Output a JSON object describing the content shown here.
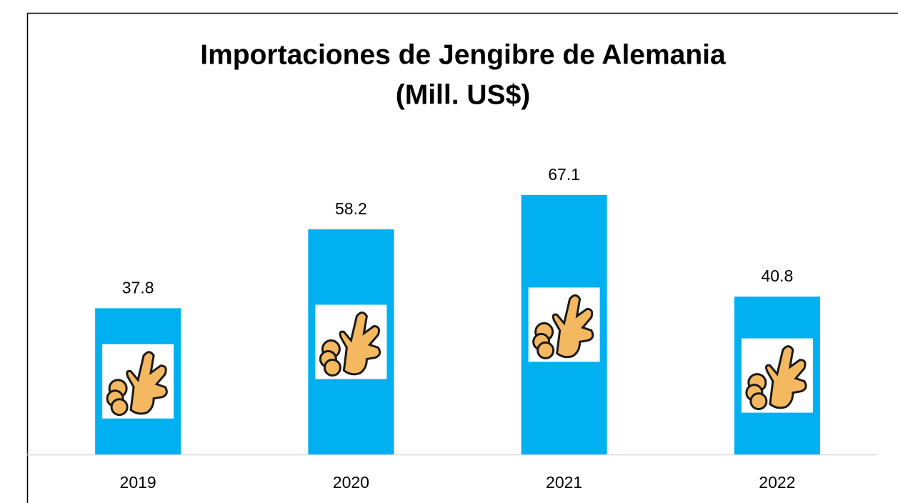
{
  "chart_data": {
    "type": "bar",
    "title": [
      "Importaciones de Jengibre de Alemania",
      "(Mill. US$)"
    ],
    "categories": [
      "2019",
      "2020",
      "2021",
      "2022"
    ],
    "values": [
      37.8,
      58.2,
      67.1,
      40.8
    ],
    "color": "#00b0f0",
    "ylim": [
      0,
      80
    ]
  }
}
